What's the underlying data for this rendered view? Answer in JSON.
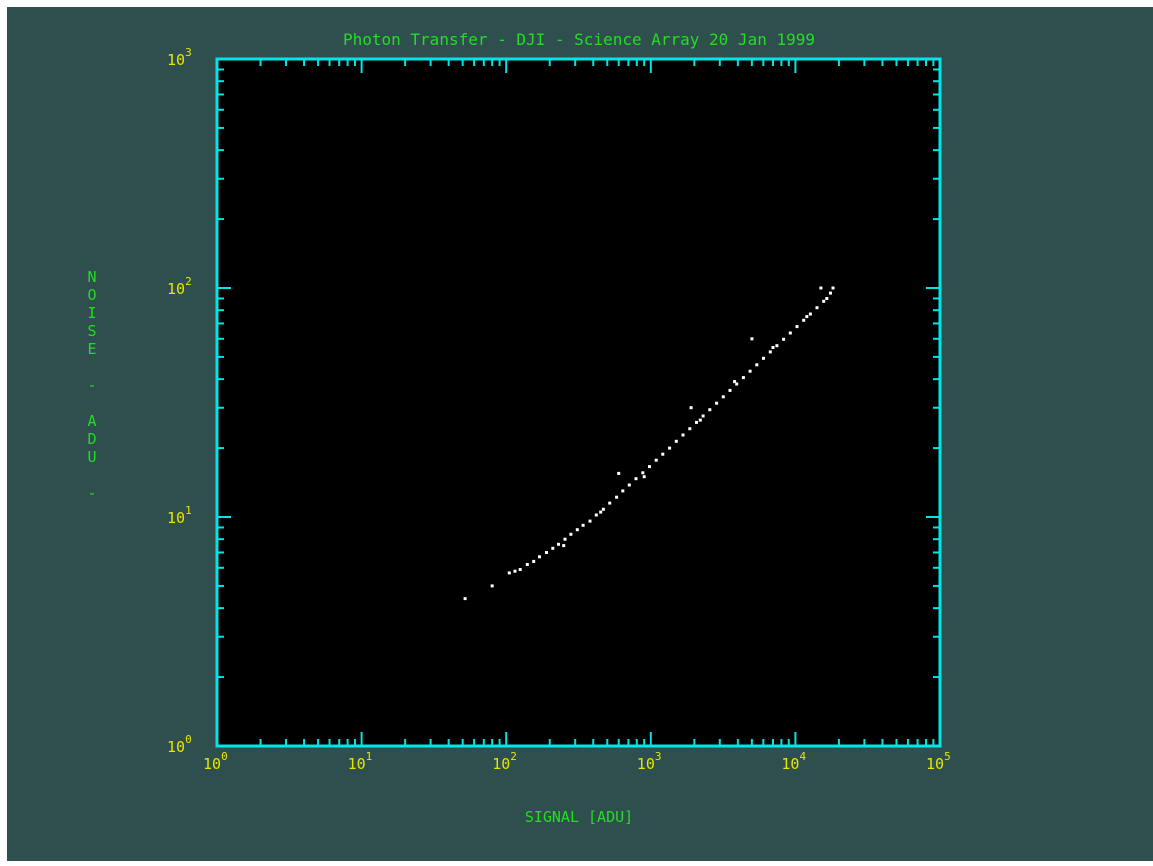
{
  "colors": {
    "background": "#2f4f4f",
    "plot_area": "#000000",
    "frame": "#00e5e5",
    "tick_labels": "#e6e600",
    "titles": "#22dd22",
    "points": "#ffffff"
  },
  "chart_data": {
    "type": "scatter",
    "title": "Photon Transfer -  DJI - Science Array 20 Jan 1999",
    "xlabel": "SIGNAL [ADU]",
    "ylabel": "NOISE - ADU -",
    "xscale": "log",
    "yscale": "log",
    "xlim": [
      1,
      100000
    ],
    "ylim": [
      1,
      1000
    ],
    "grid": false,
    "x_ticks": [
      {
        "base": "10",
        "exp": "0",
        "value": 1
      },
      {
        "base": "10",
        "exp": "1",
        "value": 10
      },
      {
        "base": "10",
        "exp": "2",
        "value": 100
      },
      {
        "base": "10",
        "exp": "3",
        "value": 1000
      },
      {
        "base": "10",
        "exp": "4",
        "value": 10000
      },
      {
        "base": "10",
        "exp": "5",
        "value": 100000
      }
    ],
    "y_ticks": [
      {
        "base": "10",
        "exp": "0",
        "value": 1
      },
      {
        "base": "10",
        "exp": "1",
        "value": 10
      },
      {
        "base": "10",
        "exp": "2",
        "value": 100
      },
      {
        "base": "10",
        "exp": "3",
        "value": 1000
      }
    ],
    "points": [
      [
        52,
        4.4
      ],
      [
        80,
        5.0
      ],
      [
        105,
        5.7
      ],
      [
        115,
        5.8
      ],
      [
        125,
        5.9
      ],
      [
        140,
        6.2
      ],
      [
        155,
        6.4
      ],
      [
        170,
        6.7
      ],
      [
        190,
        7.0
      ],
      [
        210,
        7.3
      ],
      [
        230,
        7.6
      ],
      [
        255,
        8.0
      ],
      [
        280,
        8.4
      ],
      [
        310,
        8.8
      ],
      [
        340,
        9.2
      ],
      [
        380,
        9.6
      ],
      [
        420,
        10.2
      ],
      [
        470,
        10.8
      ],
      [
        520,
        11.5
      ],
      [
        580,
        12.2
      ],
      [
        640,
        13.0
      ],
      [
        710,
        13.8
      ],
      [
        790,
        14.7
      ],
      [
        880,
        15.6
      ],
      [
        980,
        16.6
      ],
      [
        1090,
        17.7
      ],
      [
        1210,
        18.8
      ],
      [
        1350,
        20.0
      ],
      [
        1500,
        21.4
      ],
      [
        1670,
        22.8
      ],
      [
        1860,
        24.3
      ],
      [
        2070,
        25.9
      ],
      [
        2300,
        27.6
      ],
      [
        2560,
        29.4
      ],
      [
        2850,
        31.4
      ],
      [
        3170,
        33.5
      ],
      [
        3530,
        35.7
      ],
      [
        3930,
        38.1
      ],
      [
        4370,
        40.6
      ],
      [
        4860,
        43.3
      ],
      [
        5410,
        46.2
      ],
      [
        6020,
        49.3
      ],
      [
        6700,
        52.6
      ],
      [
        7450,
        56.0
      ],
      [
        8290,
        59.7
      ],
      [
        9220,
        63.6
      ],
      [
        10260,
        67.8
      ],
      [
        11410,
        72.3
      ],
      [
        12700,
        77.0
      ],
      [
        14100,
        82.0
      ],
      [
        15700,
        87.5
      ],
      [
        17500,
        95.0
      ],
      [
        18200,
        100.0
      ],
      [
        600,
        15.5
      ],
      [
        1900,
        30.0
      ],
      [
        5000,
        60.0
      ],
      [
        15000,
        100.0
      ],
      [
        250,
        7.5
      ],
      [
        450,
        10.5
      ],
      [
        900,
        15.0
      ],
      [
        2200,
        26.5
      ],
      [
        3800,
        39.0
      ],
      [
        7000,
        55.0
      ],
      [
        12000,
        75.0
      ],
      [
        16500,
        90.0
      ]
    ]
  }
}
